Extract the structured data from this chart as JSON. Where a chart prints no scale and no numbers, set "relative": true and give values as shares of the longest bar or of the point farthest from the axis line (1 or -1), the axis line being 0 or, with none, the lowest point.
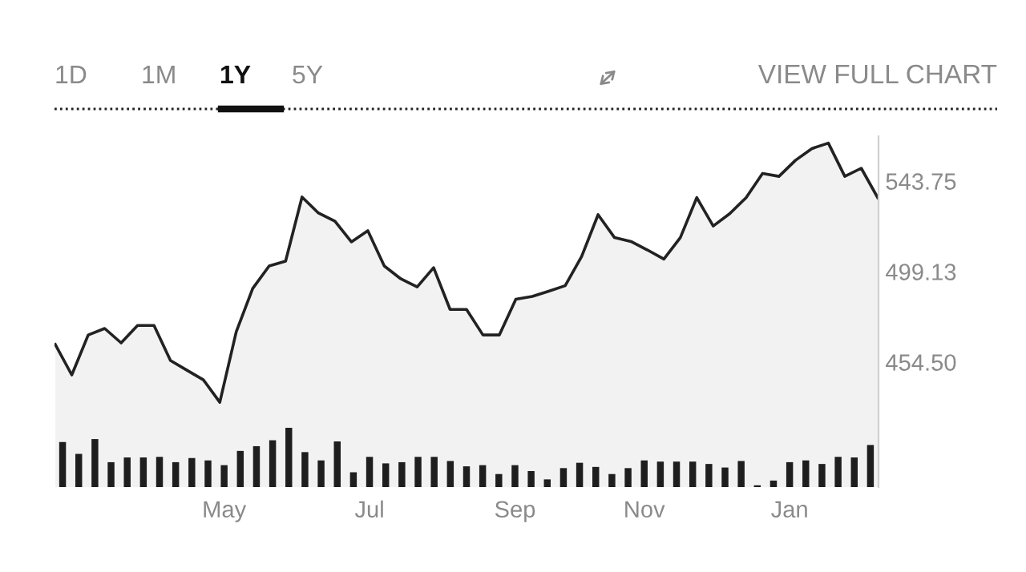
{
  "chart_data": [
    {
      "type": "area",
      "annotations": [
        "1D",
        "1M",
        "1Y",
        "5Y",
        "VIEW FULL CHART"
      ],
      "categories": [
        null,
        null,
        null,
        null,
        null,
        null,
        null,
        null,
        null,
        null,
        null,
        null,
        null,
        null,
        null,
        null,
        null,
        null,
        null,
        null,
        null,
        null,
        null,
        null,
        null,
        null,
        null,
        null,
        null,
        null,
        null,
        null,
        null,
        null,
        null,
        null,
        null,
        null,
        null,
        null,
        null,
        null,
        null,
        null,
        null,
        null,
        null,
        null,
        null,
        null,
        null
      ],
      "series": [
        {
          "color": "#222222",
          "values": [
            463.2,
            448.2,
            467.9,
            471.1,
            464.0,
            472.6,
            472.6,
            455.3,
            450.5,
            445.8,
            434.7,
            469.5,
            490.8,
            501.9,
            504.3,
            535.9,
            528.0,
            524.0,
            513.8,
            519.3,
            501.9,
            495.6,
            491.6,
            501.1,
            480.5,
            480.5,
            467.9,
            467.9,
            485.5,
            486.9,
            489.5,
            492.2,
            506.6,
            527.2,
            515.9,
            514.0,
            509.8,
            505.3,
            515.9,
            535.6,
            521.6,
            527.7,
            535.6,
            547.5,
            546.1,
            554.0,
            559.8,
            562.5,
            546.1,
            550.1,
            535.6
          ]
        }
      ],
      "ylim": [
        392.9,
        565.9
      ],
      "yticks": [
        {
          "value": 454.5,
          "label": "454.50"
        },
        499.13,
        543.75
      ],
      "tick_labels": "y",
      "grid": false,
      "legend": false
    },
    {
      "type": "bar",
      "relative": true,
      "categories": [
        null,
        null,
        null,
        null,
        null,
        null,
        null,
        null,
        null,
        null,
        "May",
        null,
        null,
        null,
        null,
        null,
        null,
        null,
        null,
        "Jul",
        null,
        null,
        null,
        null,
        null,
        null,
        null,
        null,
        "Sep",
        null,
        null,
        null,
        null,
        null,
        null,
        null,
        "Nov",
        null,
        null,
        null,
        null,
        null,
        null,
        null,
        null,
        "Jan",
        null,
        null,
        null,
        null,
        null
      ],
      "series": [
        {
          "color": "#1e1e1e",
          "values": [
            0.76,
            0.56,
            0.81,
            0.42,
            0.5,
            0.5,
            0.51,
            0.42,
            0.49,
            0.45,
            0.37,
            0.61,
            0.69,
            0.79,
            1,
            0.59,
            0.45,
            0.77,
            0.25,
            0.51,
            0.4,
            0.42,
            0.51,
            0.51,
            0.44,
            0.35,
            0.37,
            0.22,
            0.37,
            0.27,
            0.13,
            0.32,
            0.41,
            0.34,
            0.22,
            0.32,
            0.45,
            0.43,
            0.43,
            0.43,
            0.39,
            0.33,
            0.44,
            0.03,
            0.11,
            0.42,
            0.45,
            0.39,
            0.51,
            0.5,
            0.71
          ]
        }
      ],
      "tick_labels": "x",
      "grid": false,
      "legend": false
    }
  ]
}
